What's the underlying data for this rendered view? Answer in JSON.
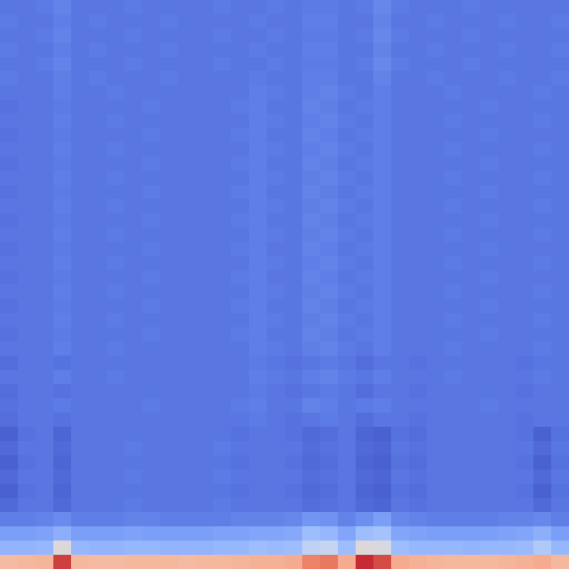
{
  "chart_data": {
    "type": "heatmap",
    "tick_labels": false,
    "color_range": [
      0,
      1
    ],
    "values": [
      [
        0.1,
        0.1,
        0.11,
        0.13,
        0.1,
        0.1,
        0.1,
        0.11,
        0.1,
        0.1,
        0.1,
        0.1,
        0.11,
        0.1,
        0.1,
        0.11,
        0.1,
        0.11,
        0.11,
        0.1,
        0.11,
        0.14,
        0.11,
        0.1,
        0.1,
        0.1,
        0.11,
        0.1,
        0.1,
        0.1,
        0.1,
        0.1
      ],
      [
        0.11,
        0.1,
        0.1,
        0.12,
        0.1,
        0.11,
        0.1,
        0.1,
        0.1,
        0.11,
        0.1,
        0.1,
        0.1,
        0.1,
        0.11,
        0.1,
        0.1,
        0.12,
        0.12,
        0.1,
        0.1,
        0.13,
        0.1,
        0.1,
        0.11,
        0.1,
        0.1,
        0.1,
        0.11,
        0.1,
        0.1,
        0.11
      ],
      [
        0.1,
        0.1,
        0.11,
        0.13,
        0.1,
        0.1,
        0.1,
        0.11,
        0.1,
        0.1,
        0.1,
        0.1,
        0.11,
        0.1,
        0.1,
        0.11,
        0.1,
        0.11,
        0.11,
        0.1,
        0.11,
        0.14,
        0.11,
        0.1,
        0.1,
        0.1,
        0.11,
        0.1,
        0.1,
        0.1,
        0.1,
        0.1
      ],
      [
        0.11,
        0.1,
        0.1,
        0.12,
        0.1,
        0.11,
        0.1,
        0.1,
        0.1,
        0.11,
        0.1,
        0.1,
        0.1,
        0.1,
        0.11,
        0.1,
        0.1,
        0.12,
        0.12,
        0.1,
        0.1,
        0.13,
        0.1,
        0.1,
        0.11,
        0.1,
        0.1,
        0.1,
        0.11,
        0.1,
        0.1,
        0.11
      ],
      [
        0.1,
        0.1,
        0.11,
        0.13,
        0.1,
        0.1,
        0.1,
        0.11,
        0.1,
        0.1,
        0.1,
        0.1,
        0.11,
        0.1,
        0.1,
        0.11,
        0.1,
        0.11,
        0.11,
        0.1,
        0.11,
        0.14,
        0.11,
        0.1,
        0.1,
        0.1,
        0.11,
        0.1,
        0.1,
        0.1,
        0.1,
        0.1
      ],
      [
        0.11,
        0.1,
        0.1,
        0.12,
        0.1,
        0.11,
        0.1,
        0.1,
        0.1,
        0.11,
        0.1,
        0.1,
        0.1,
        0.1,
        0.11,
        0.1,
        0.1,
        0.12,
        0.12,
        0.1,
        0.1,
        0.13,
        0.1,
        0.1,
        0.11,
        0.1,
        0.1,
        0.1,
        0.11,
        0.1,
        0.1,
        0.11
      ],
      [
        0.1,
        0.1,
        0.1,
        0.12,
        0.1,
        0.1,
        0.11,
        0.1,
        0.1,
        0.1,
        0.1,
        0.1,
        0.1,
        0.1,
        0.12,
        0.11,
        0.1,
        0.12,
        0.13,
        0.11,
        0.1,
        0.12,
        0.1,
        0.1,
        0.1,
        0.11,
        0.1,
        0.1,
        0.1,
        0.1,
        0.11,
        0.1
      ],
      [
        0.09,
        0.1,
        0.1,
        0.11,
        0.1,
        0.1,
        0.1,
        0.1,
        0.11,
        0.1,
        0.1,
        0.1,
        0.1,
        0.11,
        0.12,
        0.1,
        0.1,
        0.13,
        0.12,
        0.1,
        0.11,
        0.12,
        0.1,
        0.1,
        0.1,
        0.1,
        0.1,
        0.11,
        0.1,
        0.1,
        0.1,
        0.1
      ],
      [
        0.1,
        0.1,
        0.1,
        0.12,
        0.1,
        0.1,
        0.11,
        0.1,
        0.1,
        0.1,
        0.1,
        0.1,
        0.1,
        0.1,
        0.12,
        0.11,
        0.1,
        0.12,
        0.13,
        0.11,
        0.1,
        0.12,
        0.1,
        0.1,
        0.1,
        0.11,
        0.1,
        0.1,
        0.1,
        0.1,
        0.11,
        0.1
      ],
      [
        0.09,
        0.1,
        0.1,
        0.11,
        0.1,
        0.1,
        0.1,
        0.1,
        0.11,
        0.1,
        0.1,
        0.1,
        0.1,
        0.11,
        0.12,
        0.1,
        0.1,
        0.13,
        0.12,
        0.1,
        0.11,
        0.12,
        0.1,
        0.1,
        0.1,
        0.1,
        0.1,
        0.11,
        0.1,
        0.1,
        0.1,
        0.1
      ],
      [
        0.1,
        0.1,
        0.1,
        0.12,
        0.1,
        0.1,
        0.11,
        0.1,
        0.1,
        0.1,
        0.1,
        0.1,
        0.1,
        0.1,
        0.12,
        0.11,
        0.1,
        0.12,
        0.13,
        0.11,
        0.1,
        0.12,
        0.1,
        0.1,
        0.1,
        0.11,
        0.1,
        0.1,
        0.1,
        0.1,
        0.11,
        0.1
      ],
      [
        0.09,
        0.1,
        0.1,
        0.11,
        0.1,
        0.1,
        0.1,
        0.1,
        0.11,
        0.1,
        0.1,
        0.1,
        0.1,
        0.11,
        0.12,
        0.1,
        0.1,
        0.13,
        0.12,
        0.1,
        0.11,
        0.12,
        0.1,
        0.1,
        0.1,
        0.1,
        0.1,
        0.11,
        0.1,
        0.1,
        0.1,
        0.1
      ],
      [
        0.1,
        0.1,
        0.1,
        0.12,
        0.1,
        0.1,
        0.11,
        0.1,
        0.1,
        0.1,
        0.1,
        0.1,
        0.1,
        0.1,
        0.12,
        0.11,
        0.1,
        0.12,
        0.13,
        0.11,
        0.1,
        0.12,
        0.1,
        0.1,
        0.1,
        0.11,
        0.1,
        0.1,
        0.1,
        0.1,
        0.11,
        0.1
      ],
      [
        0.09,
        0.1,
        0.1,
        0.11,
        0.1,
        0.1,
        0.1,
        0.1,
        0.11,
        0.1,
        0.1,
        0.1,
        0.1,
        0.11,
        0.12,
        0.1,
        0.1,
        0.13,
        0.12,
        0.1,
        0.11,
        0.12,
        0.1,
        0.1,
        0.1,
        0.1,
        0.1,
        0.11,
        0.1,
        0.1,
        0.1,
        0.1
      ],
      [
        0.1,
        0.1,
        0.1,
        0.12,
        0.1,
        0.1,
        0.11,
        0.1,
        0.1,
        0.1,
        0.1,
        0.1,
        0.1,
        0.1,
        0.12,
        0.11,
        0.1,
        0.12,
        0.13,
        0.11,
        0.1,
        0.12,
        0.1,
        0.1,
        0.1,
        0.11,
        0.1,
        0.1,
        0.1,
        0.1,
        0.11,
        0.1
      ],
      [
        0.09,
        0.1,
        0.1,
        0.11,
        0.1,
        0.1,
        0.1,
        0.1,
        0.11,
        0.1,
        0.1,
        0.1,
        0.1,
        0.11,
        0.12,
        0.1,
        0.1,
        0.13,
        0.12,
        0.1,
        0.11,
        0.12,
        0.1,
        0.1,
        0.1,
        0.1,
        0.1,
        0.11,
        0.1,
        0.1,
        0.1,
        0.1
      ],
      [
        0.1,
        0.1,
        0.1,
        0.12,
        0.1,
        0.1,
        0.11,
        0.1,
        0.1,
        0.1,
        0.1,
        0.1,
        0.1,
        0.1,
        0.12,
        0.11,
        0.1,
        0.12,
        0.13,
        0.11,
        0.1,
        0.12,
        0.1,
        0.1,
        0.1,
        0.11,
        0.1,
        0.1,
        0.1,
        0.1,
        0.11,
        0.1
      ],
      [
        0.09,
        0.1,
        0.1,
        0.11,
        0.1,
        0.1,
        0.1,
        0.1,
        0.11,
        0.1,
        0.1,
        0.1,
        0.1,
        0.11,
        0.12,
        0.1,
        0.1,
        0.13,
        0.12,
        0.1,
        0.11,
        0.12,
        0.1,
        0.1,
        0.1,
        0.1,
        0.1,
        0.11,
        0.1,
        0.1,
        0.1,
        0.1
      ],
      [
        0.1,
        0.1,
        0.1,
        0.12,
        0.1,
        0.1,
        0.11,
        0.1,
        0.1,
        0.1,
        0.1,
        0.1,
        0.1,
        0.1,
        0.12,
        0.11,
        0.1,
        0.12,
        0.13,
        0.11,
        0.1,
        0.12,
        0.1,
        0.1,
        0.1,
        0.11,
        0.1,
        0.1,
        0.1,
        0.1,
        0.11,
        0.1
      ],
      [
        0.09,
        0.1,
        0.1,
        0.11,
        0.1,
        0.1,
        0.1,
        0.1,
        0.11,
        0.1,
        0.1,
        0.1,
        0.1,
        0.11,
        0.12,
        0.1,
        0.1,
        0.13,
        0.12,
        0.1,
        0.11,
        0.12,
        0.1,
        0.1,
        0.1,
        0.1,
        0.1,
        0.11,
        0.1,
        0.1,
        0.1,
        0.1
      ],
      [
        0.1,
        0.1,
        0.1,
        0.12,
        0.1,
        0.1,
        0.11,
        0.1,
        0.1,
        0.1,
        0.1,
        0.1,
        0.1,
        0.1,
        0.12,
        0.11,
        0.1,
        0.12,
        0.13,
        0.11,
        0.1,
        0.12,
        0.1,
        0.1,
        0.1,
        0.11,
        0.1,
        0.1,
        0.1,
        0.1,
        0.11,
        0.1
      ],
      [
        0.09,
        0.1,
        0.1,
        0.11,
        0.1,
        0.1,
        0.1,
        0.1,
        0.11,
        0.1,
        0.1,
        0.1,
        0.1,
        0.11,
        0.12,
        0.1,
        0.1,
        0.13,
        0.12,
        0.1,
        0.11,
        0.12,
        0.1,
        0.1,
        0.1,
        0.1,
        0.1,
        0.11,
        0.1,
        0.1,
        0.1,
        0.1
      ],
      [
        0.1,
        0.1,
        0.1,
        0.12,
        0.1,
        0.1,
        0.11,
        0.1,
        0.1,
        0.1,
        0.1,
        0.1,
        0.1,
        0.1,
        0.12,
        0.11,
        0.1,
        0.12,
        0.13,
        0.11,
        0.1,
        0.12,
        0.1,
        0.1,
        0.1,
        0.11,
        0.1,
        0.1,
        0.1,
        0.1,
        0.11,
        0.1
      ],
      [
        0.09,
        0.1,
        0.1,
        0.11,
        0.1,
        0.1,
        0.1,
        0.1,
        0.11,
        0.1,
        0.1,
        0.1,
        0.1,
        0.11,
        0.12,
        0.1,
        0.1,
        0.13,
        0.12,
        0.1,
        0.11,
        0.12,
        0.1,
        0.1,
        0.1,
        0.1,
        0.1,
        0.11,
        0.1,
        0.1,
        0.1,
        0.1
      ],
      [
        0.1,
        0.1,
        0.1,
        0.12,
        0.1,
        0.1,
        0.11,
        0.1,
        0.1,
        0.1,
        0.1,
        0.1,
        0.1,
        0.1,
        0.12,
        0.11,
        0.1,
        0.12,
        0.13,
        0.11,
        0.1,
        0.12,
        0.1,
        0.1,
        0.1,
        0.11,
        0.1,
        0.1,
        0.1,
        0.1,
        0.11,
        0.1
      ],
      [
        0.08,
        0.1,
        0.1,
        0.09,
        0.1,
        0.1,
        0.1,
        0.1,
        0.1,
        0.1,
        0.1,
        0.1,
        0.1,
        0.1,
        0.11,
        0.1,
        0.09,
        0.1,
        0.11,
        0.1,
        0.08,
        0.1,
        0.1,
        0.09,
        0.1,
        0.1,
        0.1,
        0.1,
        0.1,
        0.09,
        0.1,
        0.1
      ],
      [
        0.1,
        0.1,
        0.1,
        0.12,
        0.1,
        0.1,
        0.11,
        0.1,
        0.1,
        0.1,
        0.1,
        0.1,
        0.1,
        0.1,
        0.12,
        0.11,
        0.1,
        0.12,
        0.13,
        0.11,
        0.1,
        0.12,
        0.1,
        0.1,
        0.1,
        0.11,
        0.1,
        0.1,
        0.1,
        0.1,
        0.11,
        0.1
      ],
      [
        0.08,
        0.1,
        0.1,
        0.09,
        0.1,
        0.1,
        0.1,
        0.1,
        0.1,
        0.1,
        0.1,
        0.1,
        0.1,
        0.1,
        0.11,
        0.1,
        0.09,
        0.1,
        0.11,
        0.1,
        0.08,
        0.1,
        0.1,
        0.09,
        0.1,
        0.1,
        0.1,
        0.1,
        0.1,
        0.09,
        0.1,
        0.1
      ],
      [
        0.09,
        0.1,
        0.1,
        0.11,
        0.1,
        0.1,
        0.1,
        0.1,
        0.11,
        0.1,
        0.1,
        0.1,
        0.1,
        0.11,
        0.12,
        0.1,
        0.1,
        0.13,
        0.12,
        0.1,
        0.11,
        0.12,
        0.1,
        0.1,
        0.1,
        0.1,
        0.1,
        0.11,
        0.1,
        0.1,
        0.1,
        0.1
      ],
      [
        0.08,
        0.1,
        0.1,
        0.09,
        0.1,
        0.1,
        0.1,
        0.1,
        0.1,
        0.1,
        0.1,
        0.1,
        0.1,
        0.1,
        0.11,
        0.1,
        0.09,
        0.1,
        0.11,
        0.1,
        0.08,
        0.1,
        0.1,
        0.09,
        0.1,
        0.1,
        0.1,
        0.1,
        0.1,
        0.09,
        0.1,
        0.1
      ],
      [
        0.05,
        0.09,
        0.1,
        0.06,
        0.1,
        0.1,
        0.1,
        0.1,
        0.1,
        0.1,
        0.1,
        0.1,
        0.1,
        0.09,
        0.1,
        0.1,
        0.09,
        0.07,
        0.08,
        0.1,
        0.06,
        0.05,
        0.09,
        0.08,
        0.1,
        0.1,
        0.1,
        0.1,
        0.1,
        0.09,
        0.05,
        0.09
      ],
      [
        0.07,
        0.1,
        0.1,
        0.07,
        0.1,
        0.1,
        0.1,
        0.11,
        0.1,
        0.1,
        0.1,
        0.1,
        0.11,
        0.1,
        0.1,
        0.1,
        0.1,
        0.08,
        0.09,
        0.1,
        0.07,
        0.06,
        0.1,
        0.09,
        0.1,
        0.1,
        0.1,
        0.1,
        0.1,
        0.1,
        0.07,
        0.1
      ],
      [
        0.05,
        0.09,
        0.1,
        0.06,
        0.1,
        0.1,
        0.1,
        0.1,
        0.1,
        0.1,
        0.1,
        0.1,
        0.1,
        0.09,
        0.1,
        0.1,
        0.09,
        0.07,
        0.08,
        0.1,
        0.06,
        0.05,
        0.09,
        0.08,
        0.1,
        0.1,
        0.1,
        0.1,
        0.1,
        0.09,
        0.05,
        0.09
      ],
      [
        0.07,
        0.1,
        0.1,
        0.07,
        0.1,
        0.1,
        0.1,
        0.11,
        0.1,
        0.1,
        0.1,
        0.1,
        0.11,
        0.1,
        0.1,
        0.1,
        0.1,
        0.08,
        0.09,
        0.1,
        0.07,
        0.06,
        0.1,
        0.09,
        0.1,
        0.1,
        0.1,
        0.1,
        0.1,
        0.1,
        0.07,
        0.1
      ],
      [
        0.05,
        0.09,
        0.1,
        0.06,
        0.1,
        0.1,
        0.1,
        0.1,
        0.1,
        0.1,
        0.1,
        0.1,
        0.1,
        0.09,
        0.1,
        0.1,
        0.09,
        0.07,
        0.08,
        0.1,
        0.06,
        0.05,
        0.09,
        0.08,
        0.1,
        0.1,
        0.1,
        0.1,
        0.1,
        0.09,
        0.05,
        0.09
      ],
      [
        0.07,
        0.1,
        0.1,
        0.07,
        0.1,
        0.1,
        0.1,
        0.11,
        0.1,
        0.1,
        0.1,
        0.1,
        0.11,
        0.1,
        0.1,
        0.1,
        0.1,
        0.08,
        0.09,
        0.1,
        0.07,
        0.06,
        0.1,
        0.09,
        0.1,
        0.1,
        0.1,
        0.1,
        0.1,
        0.1,
        0.07,
        0.1
      ],
      [
        0.12,
        0.12,
        0.13,
        0.15,
        0.12,
        0.12,
        0.12,
        0.13,
        0.13,
        0.12,
        0.12,
        0.12,
        0.12,
        0.13,
        0.13,
        0.13,
        0.14,
        0.18,
        0.17,
        0.13,
        0.16,
        0.2,
        0.14,
        0.13,
        0.12,
        0.12,
        0.12,
        0.12,
        0.13,
        0.13,
        0.14,
        0.12
      ],
      [
        0.2,
        0.2,
        0.21,
        0.25,
        0.2,
        0.2,
        0.2,
        0.21,
        0.2,
        0.2,
        0.2,
        0.2,
        0.21,
        0.21,
        0.22,
        0.22,
        0.23,
        0.3,
        0.28,
        0.22,
        0.3,
        0.32,
        0.22,
        0.21,
        0.2,
        0.2,
        0.2,
        0.2,
        0.21,
        0.22,
        0.25,
        0.2
      ],
      [
        0.27,
        0.27,
        0.28,
        0.5,
        0.28,
        0.27,
        0.27,
        0.28,
        0.28,
        0.27,
        0.27,
        0.27,
        0.28,
        0.28,
        0.3,
        0.29,
        0.3,
        0.4,
        0.42,
        0.3,
        0.5,
        0.48,
        0.3,
        0.28,
        0.28,
        0.28,
        0.27,
        0.28,
        0.28,
        0.29,
        0.35,
        0.28
      ],
      [
        0.65,
        0.66,
        0.67,
        0.92,
        0.66,
        0.65,
        0.65,
        0.66,
        0.66,
        0.66,
        0.65,
        0.66,
        0.66,
        0.67,
        0.68,
        0.68,
        0.7,
        0.8,
        0.82,
        0.7,
        0.95,
        0.9,
        0.7,
        0.68,
        0.67,
        0.66,
        0.66,
        0.66,
        0.67,
        0.68,
        0.7,
        0.66
      ]
    ]
  }
}
